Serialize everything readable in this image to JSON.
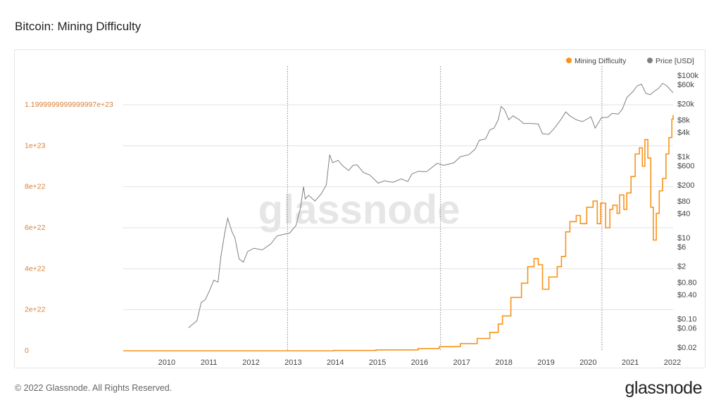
{
  "page": {
    "title": "Bitcoin: Mining Difficulty",
    "footer": "© 2022 Glassnode. All Rights Reserved.",
    "brand": "glassnode",
    "watermark": "glassnode"
  },
  "colors": {
    "difficulty": "#f7931a",
    "price": "#808080",
    "left_axis_text": "#d6803a",
    "grid": "#e2e2e2"
  },
  "chart_data": {
    "type": "line",
    "title": "Bitcoin: Mining Difficulty",
    "legend_position": "top-right",
    "x_ticks": [
      "2010",
      "2011",
      "2012",
      "2013",
      "2014",
      "2015",
      "2016",
      "2017",
      "2018",
      "2019",
      "2020",
      "2021",
      "2022"
    ],
    "y_left_ticks": [
      {
        "label": "0",
        "value": 0
      },
      {
        "label": "2e+22",
        "value": 2e+22
      },
      {
        "label": "4e+22",
        "value": 4e+22
      },
      {
        "label": "6e+22",
        "value": 6e+22
      },
      {
        "label": "8e+22",
        "value": 8e+22
      },
      {
        "label": "1e+23",
        "value": 1e+23
      },
      {
        "label": "1.1999999999999997e+23",
        "value": 1.2e+23
      }
    ],
    "y_right_ticks": [
      {
        "label": "$100k",
        "value": 100000
      },
      {
        "label": "$60k",
        "value": 60000
      },
      {
        "label": "$20k",
        "value": 20000
      },
      {
        "label": "$8k",
        "value": 8000
      },
      {
        "label": "$4k",
        "value": 4000
      },
      {
        "label": "$1k",
        "value": 1000
      },
      {
        "label": "$600",
        "value": 600
      },
      {
        "label": "$200",
        "value": 200
      },
      {
        "label": "$80",
        "value": 80
      },
      {
        "label": "$40",
        "value": 40
      },
      {
        "label": "$10",
        "value": 10
      },
      {
        "label": "$6",
        "value": 6
      },
      {
        "label": "$2",
        "value": 2
      },
      {
        "label": "$0.80",
        "value": 0.8
      },
      {
        "label": "$0.40",
        "value": 0.4
      },
      {
        "label": "$0.10",
        "value": 0.1
      },
      {
        "label": "$0.06",
        "value": 0.06
      },
      {
        "label": "$0.02",
        "value": 0.02
      }
    ],
    "y_left_range": [
      0,
      1.2e+23
    ],
    "y_right_scale": "log",
    "x_range": [
      2009.0,
      2022.05
    ],
    "halving_dates": [
      2012.9,
      2016.53,
      2020.36
    ],
    "series": [
      {
        "name": "Mining Difficulty",
        "axis": "left",
        "points": [
          [
            2009.0,
            0
          ],
          [
            2012.0,
            1.5e+18
          ],
          [
            2013.0,
            4e+18
          ],
          [
            2014.0,
            1.5e+20
          ],
          [
            2015.0,
            4e+20
          ],
          [
            2016.0,
            1.1e+21
          ],
          [
            2016.5,
            2e+21
          ],
          [
            2017.0,
            3.5e+21
          ],
          [
            2017.4,
            6e+21
          ],
          [
            2017.7,
            9e+21
          ],
          [
            2017.9,
            1.3e+22
          ],
          [
            2018.0,
            1.7e+22
          ],
          [
            2018.2,
            2.6e+22
          ],
          [
            2018.45,
            3.3e+22
          ],
          [
            2018.6,
            4.1e+22
          ],
          [
            2018.75,
            4.5e+22
          ],
          [
            2018.85,
            4.2e+22
          ],
          [
            2018.95,
            3e+22
          ],
          [
            2019.1,
            3.6e+22
          ],
          [
            2019.3,
            4.1e+22
          ],
          [
            2019.4,
            4.6e+22
          ],
          [
            2019.5,
            5.8e+22
          ],
          [
            2019.6,
            6.3e+22
          ],
          [
            2019.75,
            6.6e+22
          ],
          [
            2019.85,
            6.2e+22
          ],
          [
            2020.0,
            7e+22
          ],
          [
            2020.15,
            7.3e+22
          ],
          [
            2020.25,
            6.2e+22
          ],
          [
            2020.33,
            7.2e+22
          ],
          [
            2020.45,
            6e+22
          ],
          [
            2020.55,
            6.9e+22
          ],
          [
            2020.62,
            7.1e+22
          ],
          [
            2020.72,
            6.7e+22
          ],
          [
            2020.78,
            7.6e+22
          ],
          [
            2020.88,
            6.9e+22
          ],
          [
            2020.95,
            7.7e+22
          ],
          [
            2021.05,
            8.5e+22
          ],
          [
            2021.15,
            9.6e+22
          ],
          [
            2021.25,
            9.9e+22
          ],
          [
            2021.32,
            9e+22
          ],
          [
            2021.38,
            1.03e+23
          ],
          [
            2021.45,
            9.4e+22
          ],
          [
            2021.52,
            7e+22
          ],
          [
            2021.58,
            5.4e+22
          ],
          [
            2021.65,
            6.7e+22
          ],
          [
            2021.72,
            7.8e+22
          ],
          [
            2021.8,
            8.4e+22
          ],
          [
            2021.88,
            9.6e+22
          ],
          [
            2021.95,
            1.04e+23
          ],
          [
            2022.02,
            1.13e+23
          ],
          [
            2022.05,
            1.15e+23
          ]
        ]
      },
      {
        "name": "Price [USD]",
        "axis": "right",
        "points": [
          [
            2010.55,
            0.06
          ],
          [
            2010.62,
            0.07
          ],
          [
            2010.75,
            0.09
          ],
          [
            2010.85,
            0.25
          ],
          [
            2010.95,
            0.3
          ],
          [
            2011.05,
            0.5
          ],
          [
            2011.15,
            0.9
          ],
          [
            2011.25,
            0.8
          ],
          [
            2011.32,
            3.5
          ],
          [
            2011.42,
            15
          ],
          [
            2011.48,
            30
          ],
          [
            2011.58,
            14
          ],
          [
            2011.65,
            10
          ],
          [
            2011.75,
            3
          ],
          [
            2011.85,
            2.5
          ],
          [
            2011.95,
            4.5
          ],
          [
            2012.1,
            5.5
          ],
          [
            2012.3,
            5
          ],
          [
            2012.5,
            7
          ],
          [
            2012.65,
            11
          ],
          [
            2012.8,
            12
          ],
          [
            2012.95,
            13
          ],
          [
            2013.1,
            20
          ],
          [
            2013.2,
            50
          ],
          [
            2013.28,
            180
          ],
          [
            2013.32,
            90
          ],
          [
            2013.4,
            110
          ],
          [
            2013.55,
            80
          ],
          [
            2013.7,
            120
          ],
          [
            2013.82,
            200
          ],
          [
            2013.9,
            1100
          ],
          [
            2013.97,
            700
          ],
          [
            2014.1,
            800
          ],
          [
            2014.2,
            600
          ],
          [
            2014.35,
            450
          ],
          [
            2014.45,
            600
          ],
          [
            2014.55,
            620
          ],
          [
            2014.7,
            400
          ],
          [
            2014.85,
            350
          ],
          [
            2015.05,
            220
          ],
          [
            2015.2,
            250
          ],
          [
            2015.4,
            230
          ],
          [
            2015.6,
            280
          ],
          [
            2015.75,
            240
          ],
          [
            2015.85,
            370
          ],
          [
            2016.0,
            430
          ],
          [
            2016.2,
            420
          ],
          [
            2016.45,
            680
          ],
          [
            2016.6,
            600
          ],
          [
            2016.85,
            700
          ],
          [
            2017.0,
            980
          ],
          [
            2017.2,
            1100
          ],
          [
            2017.35,
            1500
          ],
          [
            2017.45,
            2500
          ],
          [
            2017.6,
            2700
          ],
          [
            2017.7,
            4500
          ],
          [
            2017.8,
            5000
          ],
          [
            2017.9,
            8000
          ],
          [
            2017.97,
            17000
          ],
          [
            2018.05,
            14000
          ],
          [
            2018.15,
            8000
          ],
          [
            2018.25,
            10000
          ],
          [
            2018.4,
            8000
          ],
          [
            2018.5,
            6500
          ],
          [
            2018.65,
            6500
          ],
          [
            2018.85,
            6300
          ],
          [
            2018.95,
            3600
          ],
          [
            2019.1,
            3500
          ],
          [
            2019.25,
            5200
          ],
          [
            2019.4,
            8500
          ],
          [
            2019.5,
            12500
          ],
          [
            2019.6,
            10000
          ],
          [
            2019.75,
            8000
          ],
          [
            2019.9,
            7200
          ],
          [
            2020.1,
            9500
          ],
          [
            2020.2,
            5000
          ],
          [
            2020.35,
            9000
          ],
          [
            2020.5,
            9200
          ],
          [
            2020.6,
            11500
          ],
          [
            2020.75,
            11000
          ],
          [
            2020.85,
            15000
          ],
          [
            2020.95,
            28000
          ],
          [
            2021.1,
            40000
          ],
          [
            2021.2,
            55000
          ],
          [
            2021.3,
            60000
          ],
          [
            2021.4,
            36000
          ],
          [
            2021.5,
            33000
          ],
          [
            2021.6,
            40000
          ],
          [
            2021.7,
            47000
          ],
          [
            2021.8,
            63000
          ],
          [
            2021.88,
            57000
          ],
          [
            2021.95,
            48000
          ],
          [
            2022.0,
            42000
          ],
          [
            2022.05,
            37000
          ]
        ]
      }
    ]
  }
}
